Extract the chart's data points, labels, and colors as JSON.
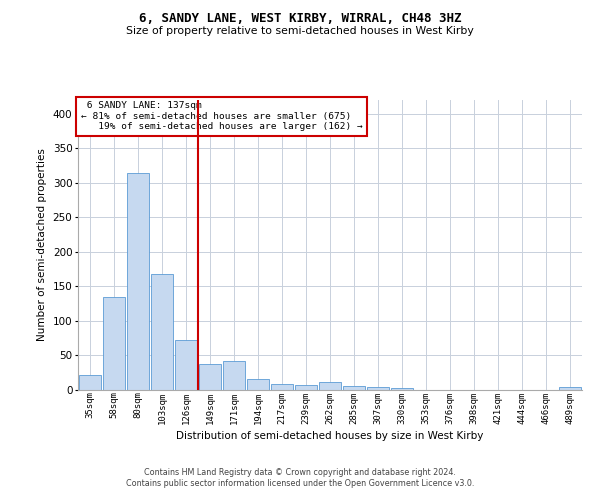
{
  "title1": "6, SANDY LANE, WEST KIRBY, WIRRAL, CH48 3HZ",
  "title2": "Size of property relative to semi-detached houses in West Kirby",
  "xlabel": "Distribution of semi-detached houses by size in West Kirby",
  "ylabel": "Number of semi-detached properties",
  "categories": [
    "35sqm",
    "58sqm",
    "80sqm",
    "103sqm",
    "126sqm",
    "149sqm",
    "171sqm",
    "194sqm",
    "217sqm",
    "239sqm",
    "262sqm",
    "285sqm",
    "307sqm",
    "330sqm",
    "353sqm",
    "376sqm",
    "398sqm",
    "421sqm",
    "444sqm",
    "466sqm",
    "489sqm"
  ],
  "values": [
    22,
    135,
    315,
    168,
    72,
    37,
    42,
    16,
    9,
    7,
    11,
    6,
    4,
    3,
    0,
    0,
    0,
    0,
    0,
    0,
    5
  ],
  "bar_color": "#c6d9f0",
  "bar_edge_color": "#5b9bd5",
  "ylim": [
    0,
    420
  ],
  "yticks": [
    0,
    50,
    100,
    150,
    200,
    250,
    300,
    350,
    400
  ],
  "property_label": "6 SANDY LANE: 137sqm",
  "pct_smaller": 81,
  "n_smaller": 675,
  "pct_larger": 19,
  "n_larger": 162,
  "vline_x": 4.5,
  "annotation_box_color": "#ffffff",
  "annotation_box_edge": "#cc0000",
  "footer1": "Contains HM Land Registry data © Crown copyright and database right 2024.",
  "footer2": "Contains public sector information licensed under the Open Government Licence v3.0.",
  "bg_color": "#ffffff",
  "grid_color": "#c8d0dc"
}
